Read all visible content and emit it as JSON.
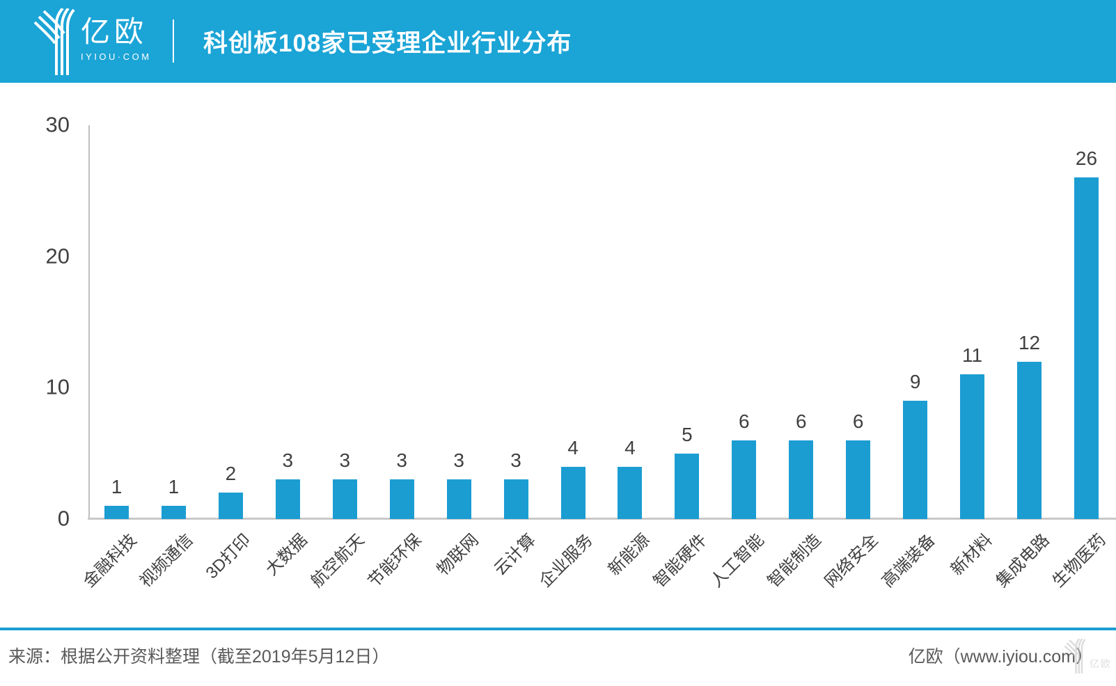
{
  "header": {
    "brand": "亿欧",
    "domain": "IYIOU·COM",
    "title": "科创板108家已受理企业行业分布"
  },
  "chart_data": {
    "type": "bar",
    "title": "科创板108家已受理企业行业分布",
    "categories": [
      "金融科技",
      "视频通信",
      "3D打印",
      "大数据",
      "航空航天",
      "节能环保",
      "物联网",
      "云计算",
      "企业服务",
      "新能源",
      "智能硬件",
      "人工智能",
      "智能制造",
      "网络安全",
      "高端装备",
      "新材料",
      "集成电路",
      "生物医药"
    ],
    "values": [
      1,
      1,
      2,
      3,
      3,
      3,
      3,
      3,
      4,
      4,
      5,
      6,
      6,
      6,
      9,
      11,
      12,
      26
    ],
    "xlabel": "",
    "ylabel": "",
    "ylim": [
      0,
      30
    ],
    "yticks": [
      0,
      10,
      20,
      30
    ],
    "grid": false,
    "legend": "none",
    "value_labels": true,
    "bar_color": "#1B9DD2"
  },
  "colors": {
    "header_blue": "#1BA4D6",
    "bar_blue": "#1B9DD2",
    "axis_gray": "#C9C9C9",
    "label_dark": "#404040",
    "footer_gray": "#595959"
  },
  "footer": {
    "source": "来源：根据公开资料整理（截至2019年5月12日）",
    "credit": "亿欧（www.iyiou.com）",
    "watermark_text": "亿欧"
  }
}
